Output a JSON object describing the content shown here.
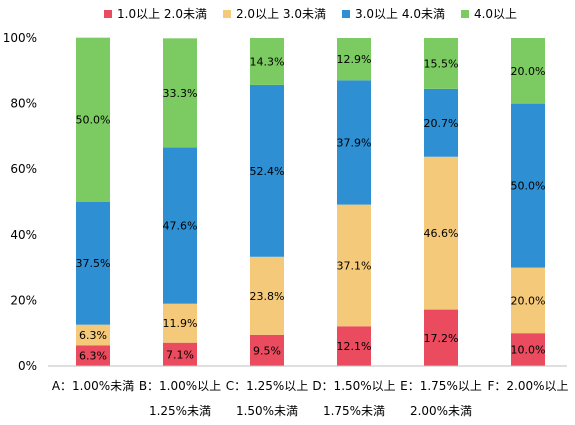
{
  "chart_data": {
    "type": "bar",
    "stacked": true,
    "percent": true,
    "categories": [
      [
        "A：1.00%未満",
        ""
      ],
      [
        "B：1.00%以上",
        "1.25%未満"
      ],
      [
        "C：1.25%以上",
        "1.50%未満"
      ],
      [
        "D：1.50%以上",
        "1.75%未満"
      ],
      [
        "E：1.75%以上",
        "2.00%未満"
      ],
      [
        "F：2.00%以上",
        ""
      ]
    ],
    "series": [
      {
        "name": "1.0以上 2.0未満",
        "color": "#ea4b5e",
        "values": [
          6.3,
          7.1,
          9.5,
          12.1,
          17.2,
          10.0
        ],
        "labels": [
          "6.3%",
          "7.1%",
          "9.5%",
          "12.1%",
          "17.2%",
          "10.0%"
        ]
      },
      {
        "name": "2.0以上 3.0未満",
        "color": "#f5c97a",
        "values": [
          6.3,
          11.9,
          23.8,
          37.1,
          46.6,
          20.0
        ],
        "labels": [
          "6.3%",
          "11.9%",
          "23.8%",
          "37.1%",
          "46.6%",
          "20.0%"
        ]
      },
      {
        "name": "3.0以上 4.0未満",
        "color": "#2e8fd3",
        "values": [
          37.5,
          47.6,
          52.4,
          37.9,
          20.7,
          50.0
        ],
        "labels": [
          "37.5%",
          "47.6%",
          "52.4%",
          "37.9%",
          "20.7%",
          "50.0%"
        ]
      },
      {
        "name": "4.0以上",
        "color": "#7ccb62",
        "values": [
          50.0,
          33.3,
          14.3,
          12.9,
          15.5,
          20.0
        ],
        "labels": [
          "50.0%",
          "33.3%",
          "14.3%",
          "12.9%",
          "15.5%",
          "20.0%"
        ]
      }
    ],
    "ylim": [
      0,
      100
    ],
    "yticks": [
      "0%",
      "20%",
      "40%",
      "60%",
      "80%",
      "100%"
    ],
    "grid": false,
    "legend_position": "top"
  }
}
